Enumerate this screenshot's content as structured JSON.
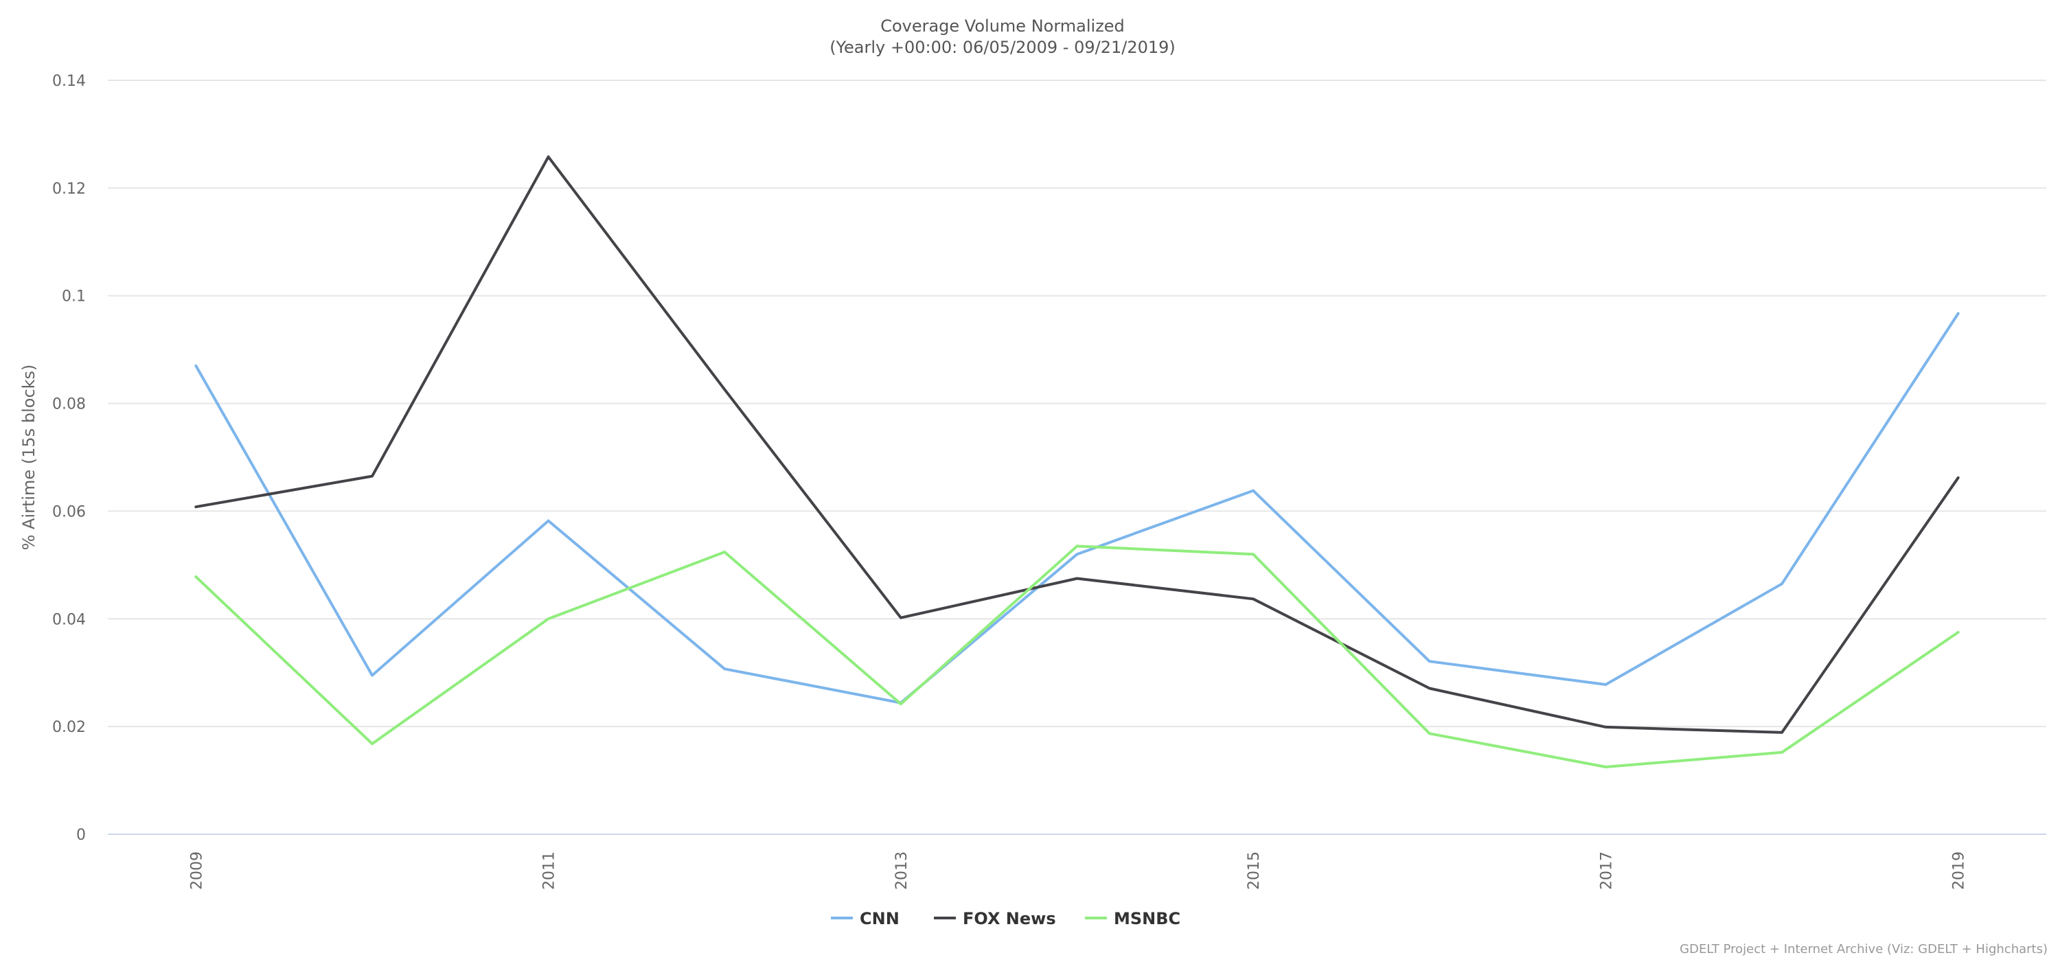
{
  "chart_data": {
    "type": "line",
    "title": "Coverage Volume Normalized",
    "subtitle": "(Yearly +00:00: 06/05/2009 - 09/21/2019)",
    "xlabel": "",
    "ylabel": "% Airtime (15s blocks)",
    "x": [
      2009,
      2010,
      2011,
      2012,
      2013,
      2014,
      2015,
      2016,
      2017,
      2018,
      2019
    ],
    "x_tick_labels": [
      "2009",
      "2011",
      "2013",
      "2015",
      "2017",
      "2019"
    ],
    "y_ticks": [
      0,
      0.02,
      0.04,
      0.06,
      0.08,
      0.1,
      0.12,
      0.14
    ],
    "y_tick_labels": [
      "0",
      "0.02",
      "0.04",
      "0.06",
      "0.08",
      "0.1",
      "0.12",
      "0.14"
    ],
    "xlim": [
      2008.5,
      2019.5
    ],
    "ylim": [
      0,
      0.14
    ],
    "grid": true,
    "legend_position": "bottom-center",
    "series": [
      {
        "name": "CNN",
        "color": "#7cb5ec",
        "values": [
          0.087,
          0.0295,
          0.0582,
          0.0307,
          0.0244,
          0.052,
          0.0638,
          0.0321,
          0.0278,
          0.0465,
          0.0967
        ]
      },
      {
        "name": "FOX News",
        "color": "#434348",
        "values": [
          0.0608,
          0.0665,
          0.1258,
          0.0826,
          0.0402,
          0.0475,
          0.0437,
          0.0271,
          0.0199,
          0.0189,
          0.0662
        ]
      },
      {
        "name": "MSNBC",
        "color": "#90ed7d",
        "values": [
          0.0478,
          0.0168,
          0.04,
          0.0524,
          0.0242,
          0.0535,
          0.052,
          0.0187,
          0.0125,
          0.0152,
          0.0375
        ]
      }
    ]
  },
  "credits": "GDELT Project + Internet Archive (Viz: GDELT + Highcharts)"
}
